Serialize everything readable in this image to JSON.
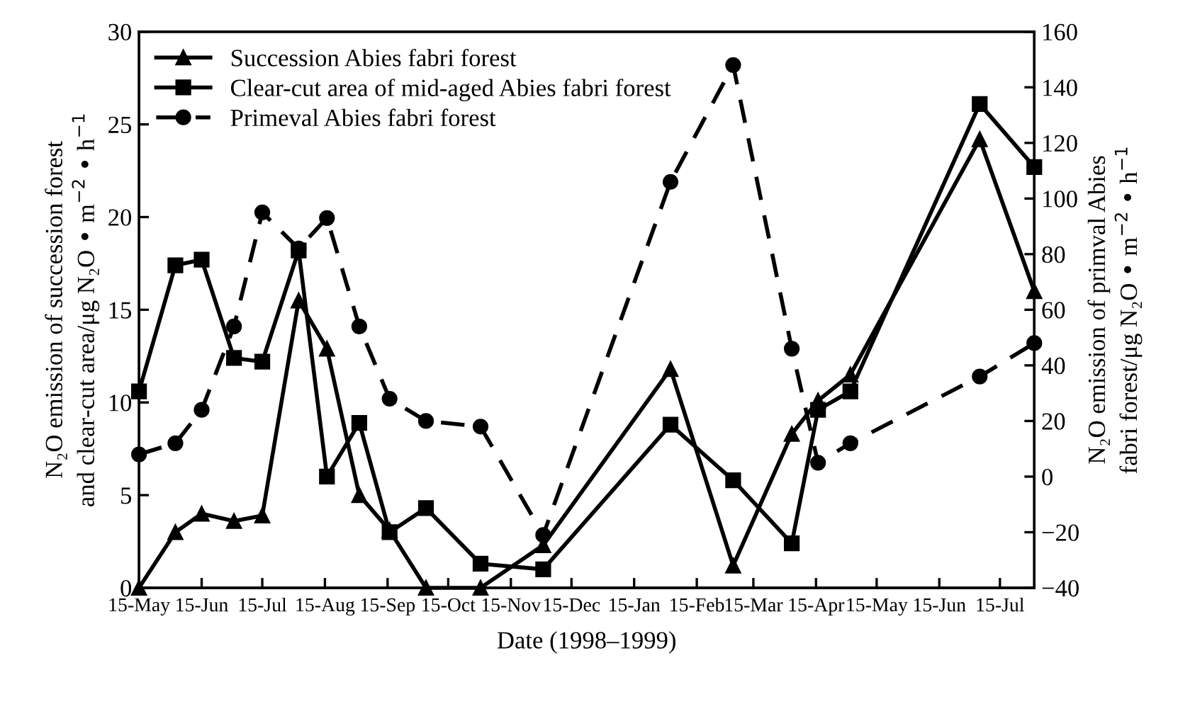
{
  "chart_data": {
    "type": "line",
    "xlabel": "Date (1998–1999)",
    "ylabel": "N₂O emission of succession forest\nand clear-cut area/μg N₂O • m$^{−2}$ • h$^{−1}$",
    "y2label": "N₂O emission of primval Abies\nfabri forest/μg N₂O • m$^{−2}$ • h$^{−1}$",
    "x": [
      "1998-05-15",
      "1998-06-02",
      "1998-06-15",
      "1998-07-01",
      "1998-07-15",
      "1998-08-02",
      "1998-08-16",
      "1998-09-01",
      "1998-09-16",
      "1998-10-04",
      "1998-10-31",
      "1998-12-01",
      "1999-02-02",
      "1999-03-05",
      "1999-04-03",
      "1999-04-16",
      "1999-05-02",
      "1999-07-05",
      "1999-08-01"
    ],
    "series": [
      {
        "name": "Succession Abies fabri forest",
        "color": "#000000",
        "marker": "triangle",
        "line_style": "solid",
        "values": [
          0,
          3.0,
          4.0,
          3.6,
          3.9,
          15.5,
          12.9,
          5.0,
          3.1,
          0,
          0,
          2.3,
          11.8,
          1.2,
          8.3,
          10.1,
          11.5,
          24.2,
          16.0
        ]
      },
      {
        "name": "Clear-cut area of mid-aged Abies fabri forest",
        "color": "#000000",
        "marker": "square",
        "line_style": "solid",
        "values": [
          10.6,
          17.4,
          17.7,
          12.4,
          12.2,
          18.2,
          6.0,
          8.9,
          3.0,
          4.3,
          1.3,
          1.0,
          8.8,
          5.8,
          2.4,
          9.6,
          10.6,
          26.1,
          22.7
        ]
      },
      {
        "name": "Primeval Abies fabri forest",
        "color": "#000000",
        "marker": "circle",
        "line_style": "dashed",
        "axis": "y2",
        "values": [
          8,
          12,
          24,
          54,
          95,
          82,
          93,
          54,
          28,
          20,
          18,
          -21,
          106,
          148,
          46,
          5,
          12,
          36,
          48
        ]
      }
    ],
    "xlim": [
      "1998-05-15",
      "1999-08-01"
    ],
    "xticks": [
      {
        "value": "1998-05-15",
        "label": "15-May"
      },
      {
        "value": "1998-06-15",
        "label": "15-Jun"
      },
      {
        "value": "1998-07-15",
        "label": "15-Jul"
      },
      {
        "value": "1998-08-15",
        "label": "15-Aug"
      },
      {
        "value": "1998-09-15",
        "label": "15-Sep"
      },
      {
        "value": "1998-10-15",
        "label": "15-Oct"
      },
      {
        "value": "1998-11-15",
        "label": "15-Nov"
      },
      {
        "value": "1998-12-15",
        "label": "15-Dec"
      },
      {
        "value": "1999-01-15",
        "label": "15-Jan"
      },
      {
        "value": "1999-02-15",
        "label": "15-Feb"
      },
      {
        "value": "1999-03-15",
        "label": "15-Mar"
      },
      {
        "value": "1999-04-15",
        "label": "15-Apr"
      },
      {
        "value": "1999-05-15",
        "label": "15-May"
      },
      {
        "value": "1999-06-15",
        "label": "15-Jun"
      },
      {
        "value": "1999-07-15",
        "label": "15-Jul"
      }
    ],
    "ylim": [
      0,
      30
    ],
    "yticks": [
      0,
      5,
      10,
      15,
      20,
      25,
      30
    ],
    "y2lim": [
      -40,
      160
    ],
    "y2ticks": [
      {
        "value": -40,
        "label": "−40"
      },
      {
        "value": -20,
        "label": "−20"
      },
      0,
      20,
      40,
      60,
      80,
      100,
      120,
      140,
      160
    ],
    "grid": false,
    "legend": "top left"
  }
}
